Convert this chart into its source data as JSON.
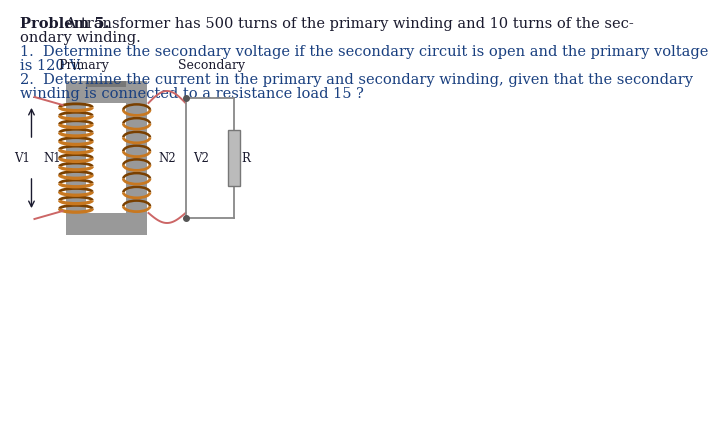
{
  "bg_color": "#ffffff",
  "text_black": "#1a1a2e",
  "text_blue": "#1a4080",
  "title_bold": "Problem 5.",
  "title_rest": " A transformer has 500 turns of the primary winding and 10 turns of the sec-",
  "line2": "ondary winding.",
  "line3": "1.  Determine the secondary voltage if the secondary circuit is open and the primary voltage",
  "line4": "is 120 V.",
  "line5": "2.  Determine the current in the primary and secondary winding, given that the secondary",
  "line6": "winding is connected to a resistance load 15 ?",
  "label_primary": "Primary",
  "label_secondary": "Secondary",
  "label_v1": "V1",
  "label_n1": "N1",
  "label_n2": "N2",
  "label_v2": "V2",
  "label_r": "R",
  "core_color": "#999999",
  "core_dark": "#777777",
  "core_top_color": "#888888",
  "coil_color": "#c87820",
  "coil_dark": "#7a4000",
  "wire_color": "#cc6666",
  "circuit_color": "#888888",
  "resistor_fill": "#bbbbbb",
  "resistor_edge": "#777777",
  "n_turns_primary": 13,
  "n_turns_secondary": 8,
  "fs_text": 10.5,
  "fs_label": 9.0,
  "fs_small": 8.5
}
